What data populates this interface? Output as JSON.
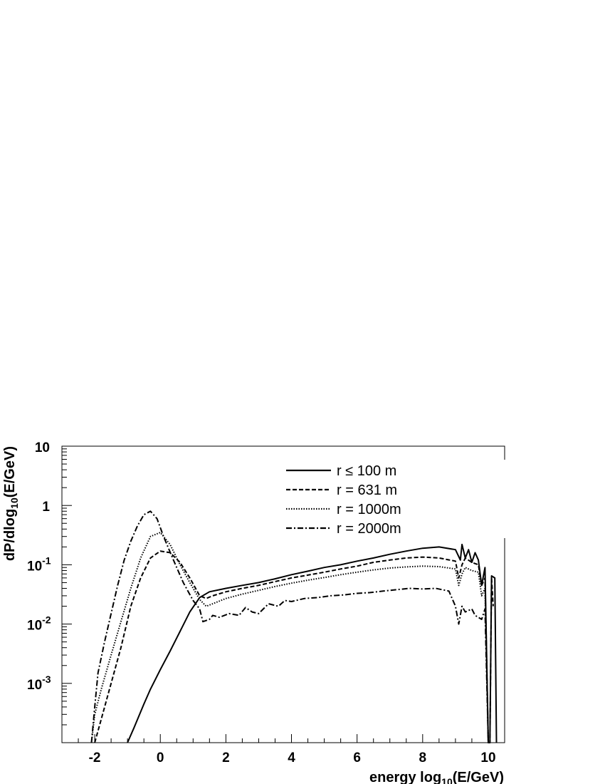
{
  "chart_data": {
    "type": "line",
    "xlabel": "energy log10(E/GeV)",
    "ylabel": "dP/dlog10(E/GeV)",
    "xlim": [
      -3.0,
      10.5
    ],
    "ylim": [
      0.0001,
      10
    ],
    "y_scale": "log",
    "x_ticks": [
      {
        "value": -2,
        "label": "-2"
      },
      {
        "value": 0,
        "label": "0"
      },
      {
        "value": 2,
        "label": "2"
      },
      {
        "value": 4,
        "label": "4"
      },
      {
        "value": 6,
        "label": "6"
      },
      {
        "value": 8,
        "label": "8"
      },
      {
        "value": 10,
        "label": "10"
      }
    ],
    "y_ticks": [
      {
        "value": 10,
        "label": "10"
      },
      {
        "value": 1,
        "label": "1"
      },
      {
        "value": 0.1,
        "label": "10",
        "exp": "-1"
      },
      {
        "value": 0.01,
        "label": "10",
        "exp": "-2"
      },
      {
        "value": 0.001,
        "label": "10",
        "exp": "-3"
      }
    ],
    "legend_position": "top-right",
    "series": [
      {
        "name": "r ≤ 100 m",
        "style": "solid",
        "x": [
          -1.0,
          -0.8,
          -0.5,
          -0.3,
          0.0,
          0.3,
          0.6,
          0.9,
          1.2,
          1.5,
          2.0,
          2.5,
          3.0,
          3.5,
          4.0,
          4.5,
          5.0,
          5.5,
          6.0,
          6.5,
          7.0,
          7.5,
          8.0,
          8.5,
          9.0,
          9.15,
          9.2,
          9.3,
          9.4,
          9.5,
          9.6,
          9.7,
          9.8,
          9.9,
          10.0,
          10.05,
          10.1,
          10.2,
          10.25
        ],
        "y": [
          0.0001,
          0.00018,
          0.00045,
          0.0008,
          0.0017,
          0.0035,
          0.0075,
          0.016,
          0.028,
          0.035,
          0.04,
          0.045,
          0.05,
          0.058,
          0.068,
          0.078,
          0.09,
          0.1,
          0.115,
          0.13,
          0.15,
          0.17,
          0.19,
          0.2,
          0.18,
          0.12,
          0.22,
          0.13,
          0.18,
          0.11,
          0.16,
          0.12,
          0.045,
          0.09,
          0.0001,
          0.0001,
          0.065,
          0.06,
          0.0001
        ]
      },
      {
        "name": "r = 631 m",
        "style": "dashed",
        "x": [
          -2.0,
          -1.8,
          -1.5,
          -1.2,
          -0.9,
          -0.6,
          -0.3,
          0.0,
          0.3,
          0.6,
          0.9,
          1.2,
          1.4,
          1.6,
          2.0,
          2.5,
          3.0,
          3.5,
          4.0,
          4.5,
          5.0,
          5.5,
          6.0,
          6.5,
          7.0,
          7.5,
          8.0,
          8.5,
          9.0,
          9.1,
          9.2,
          9.3,
          9.5,
          9.7,
          9.8,
          9.9,
          10.0,
          10.05,
          10.1,
          10.15
        ],
        "y": [
          0.0001,
          0.00025,
          0.001,
          0.004,
          0.02,
          0.06,
          0.13,
          0.17,
          0.16,
          0.11,
          0.06,
          0.03,
          0.027,
          0.03,
          0.035,
          0.04,
          0.045,
          0.052,
          0.06,
          0.067,
          0.075,
          0.085,
          0.095,
          0.11,
          0.12,
          0.13,
          0.135,
          0.13,
          0.115,
          0.06,
          0.1,
          0.13,
          0.11,
          0.1,
          0.045,
          0.06,
          0.0001,
          0.0001,
          0.06,
          0.02
        ]
      },
      {
        "name": "r = 1000m",
        "style": "dotted",
        "x": [
          -2.1,
          -2.0,
          -1.8,
          -1.5,
          -1.2,
          -0.9,
          -0.6,
          -0.3,
          0.0,
          0.3,
          0.6,
          0.9,
          1.2,
          1.4,
          1.6,
          2.0,
          2.5,
          3.0,
          3.5,
          4.0,
          4.5,
          5.0,
          5.5,
          6.0,
          6.5,
          7.0,
          7.5,
          8.0,
          8.5,
          9.0,
          9.1,
          9.2,
          9.3,
          9.5,
          9.7,
          9.8,
          9.9,
          10.0
        ],
        "y": [
          0.0001,
          0.0003,
          0.0008,
          0.003,
          0.011,
          0.04,
          0.13,
          0.3,
          0.35,
          0.22,
          0.1,
          0.05,
          0.026,
          0.02,
          0.022,
          0.027,
          0.032,
          0.037,
          0.043,
          0.049,
          0.055,
          0.061,
          0.068,
          0.075,
          0.082,
          0.088,
          0.092,
          0.095,
          0.093,
          0.085,
          0.045,
          0.07,
          0.09,
          0.08,
          0.075,
          0.03,
          0.04,
          0.0001
        ]
      },
      {
        "name": "r = 2000m",
        "style": "dashdot",
        "x": [
          -2.1,
          -2.0,
          -1.9,
          -1.7,
          -1.5,
          -1.3,
          -1.1,
          -0.9,
          -0.7,
          -0.5,
          -0.3,
          -0.1,
          0.1,
          0.4,
          0.7,
          1.0,
          1.2,
          1.3,
          1.5,
          1.6,
          1.8,
          2.1,
          2.4,
          2.6,
          2.8,
          3.0,
          3.3,
          3.6,
          3.8,
          4.0,
          4.4,
          4.8,
          5.2,
          5.6,
          6.0,
          6.4,
          6.8,
          7.2,
          7.6,
          8.0,
          8.4,
          8.8,
          9.0,
          9.1,
          9.2,
          9.3,
          9.5,
          9.6,
          9.8,
          9.9,
          10.0
        ],
        "y": [
          0.0001,
          0.0004,
          0.0015,
          0.005,
          0.015,
          0.045,
          0.12,
          0.25,
          0.45,
          0.7,
          0.8,
          0.6,
          0.3,
          0.12,
          0.05,
          0.025,
          0.018,
          0.011,
          0.012,
          0.014,
          0.013,
          0.015,
          0.014,
          0.019,
          0.016,
          0.015,
          0.022,
          0.02,
          0.025,
          0.024,
          0.027,
          0.028,
          0.03,
          0.031,
          0.033,
          0.034,
          0.036,
          0.038,
          0.04,
          0.039,
          0.04,
          0.036,
          0.02,
          0.01,
          0.02,
          0.016,
          0.018,
          0.014,
          0.012,
          0.018,
          0.0001
        ]
      }
    ]
  }
}
